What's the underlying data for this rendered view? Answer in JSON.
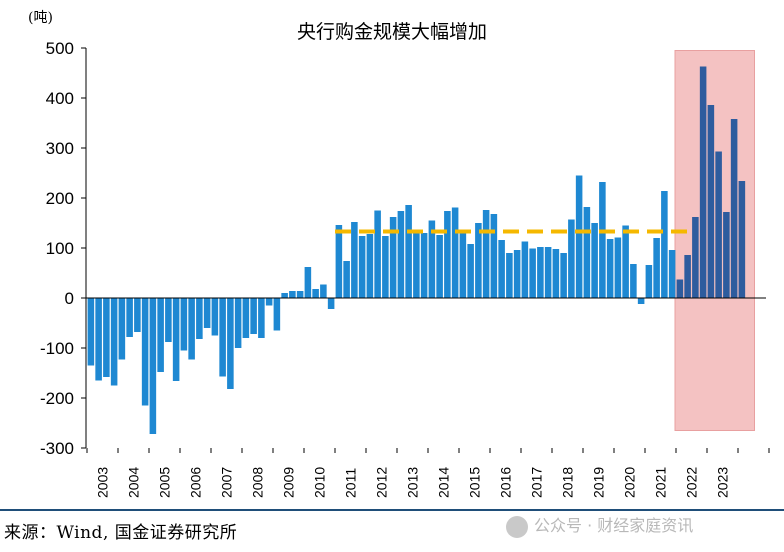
{
  "chart_data": {
    "type": "bar",
    "title": "央行购金规模大幅增加",
    "unit_label": "(吨)",
    "ylim": [
      -300,
      500
    ],
    "yticks": [
      500,
      400,
      300,
      200,
      100,
      0,
      -100,
      -200,
      -300
    ],
    "xlabels": [
      "2003",
      "2004",
      "2005",
      "2006",
      "2007",
      "2008",
      "2009",
      "2010",
      "2011",
      "2012",
      "2013",
      "2014",
      "2015",
      "2016",
      "2017",
      "2018",
      "2019",
      "2020",
      "2021",
      "2022",
      "2023"
    ],
    "quarters_per_year": 4,
    "values": [
      -135,
      -165,
      -158,
      -175,
      -123,
      -78,
      -68,
      -215,
      -272,
      -148,
      -88,
      -166,
      -105,
      -123,
      -82,
      -60,
      -75,
      -157,
      -182,
      -100,
      -80,
      -72,
      -80,
      -15,
      -65,
      10,
      14,
      14,
      62,
      18,
      27,
      -22,
      146,
      74,
      152,
      124,
      128,
      175,
      124,
      162,
      174,
      186,
      132,
      130,
      155,
      126,
      174,
      181,
      136,
      108,
      150,
      176,
      168,
      116,
      90,
      96,
      113,
      99,
      102,
      102,
      98,
      90,
      157,
      245,
      182,
      150,
      232,
      118,
      121,
      145,
      68,
      -12,
      66,
      120,
      214,
      96,
      37,
      86,
      162,
      463,
      386,
      293,
      172,
      358,
      234
    ],
    "average_line": {
      "value": 133,
      "from_quarter_index": 32,
      "to_quarter_index": 77,
      "color": "#F5B800",
      "style": "dashed"
    },
    "highlight_region": {
      "from_quarter_index": 76,
      "to_quarter_index": 85,
      "ymin": -265,
      "ymax": 495,
      "color": "#F4C2C2"
    },
    "colors": {
      "bar": "#1E88D2",
      "bar_highlight": "#2E5C9E",
      "axis": "#000000"
    },
    "grid": false,
    "legend": "none"
  },
  "footer": {
    "source": "来源：Wind, 国金证券研究所",
    "watermark": "公众号 · 财经家庭资讯"
  }
}
